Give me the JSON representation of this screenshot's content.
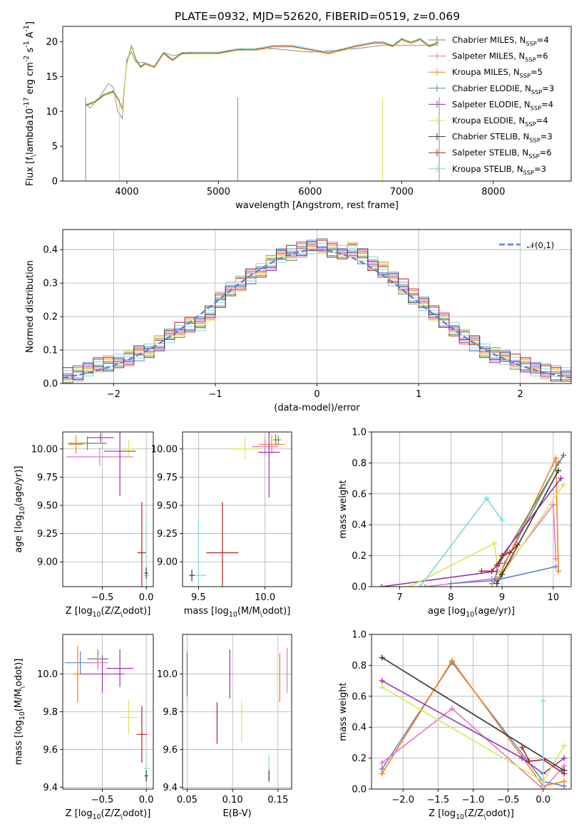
{
  "title": "PLATE=0932, MJD=52620, FIBERID=0519, z=0.069",
  "series_colors": [
    "#808080",
    "#e377c2",
    "#ff7f0e",
    "#5c8a5c",
    "#9b30b0",
    "#d4ea55",
    "#3a3a3a",
    "#b22222",
    "#7fd8d8"
  ],
  "legend": [
    "Chabrier MILES, N$_{SSP}$=4",
    "Salpeter MILES, N$_{SSP}$=6",
    "Kroupa MILES, N$_{SSP}$=5",
    "Chabrier ELODIE, N$_{SSP}$=3",
    "Salpeter ELODIE, N$_{SSP}$=4",
    "Kroupa ELODIE, N$_{SSP}$=4",
    "Chabrier STELIB, N$_{SSP}$=3",
    "Salpeter STELIB, N$_{SSP}$=6",
    "Kroupa STELIB, N$_{SSP}$=3"
  ],
  "chart_data": [
    {
      "id": "spectrum",
      "type": "line",
      "xlabel": "wavelength [Angstrom, rest frame]",
      "ylabel": "Flux [f$_\\lambda$10$^{-17}$ erg cm$^{-2}$ s$^{-1}$ A$^{-1}$]",
      "xlim": [
        3300,
        8850
      ],
      "ylim": [
        0,
        22.2
      ],
      "xticks": [
        4000,
        5000,
        6000,
        7000,
        8000
      ],
      "yticks": [
        0,
        5,
        10,
        15,
        20
      ],
      "observed": {
        "x": [
          3550,
          3600,
          3700,
          3800,
          3850,
          3900,
          3950,
          4000,
          4050,
          4100,
          4200,
          4300,
          4400,
          4500,
          4700,
          5000,
          5300,
          5600,
          6000,
          6500,
          6800,
          7000,
          7200,
          7400
        ],
        "y": [
          11,
          10.5,
          12,
          14,
          13.5,
          10,
          9,
          17.5,
          18.5,
          17,
          17,
          16.5,
          18.5,
          18,
          18.5,
          18.5,
          19,
          19,
          18.5,
          19,
          19.5,
          19.5,
          19.5,
          19.5
        ]
      },
      "model": {
        "x": [
          3550,
          3650,
          3750,
          3850,
          3900,
          3950,
          4000,
          4050,
          4100,
          4150,
          4200,
          4300,
          4400,
          4500,
          4600,
          4800,
          5000,
          5200,
          5400,
          5600,
          5800,
          6000,
          6200,
          6500,
          6700,
          6800,
          6900,
          7000,
          7100,
          7200,
          7300,
          7400
        ],
        "y": [
          11,
          11.5,
          12.5,
          13,
          12,
          10.5,
          17,
          19.5,
          17.5,
          16.5,
          17,
          16.5,
          18.5,
          17.5,
          18.5,
          18.5,
          18.5,
          19,
          19,
          19.5,
          19.5,
          19,
          18.5,
          19.5,
          20,
          20,
          19.5,
          20.5,
          20,
          20.5,
          19.5,
          20
        ]
      }
    },
    {
      "id": "residual-hist",
      "type": "line",
      "xlabel": "(data-model)/error",
      "ylabel": "Normed distribution",
      "xlim": [
        -2.5,
        2.5
      ],
      "ylim": [
        0,
        0.46
      ],
      "xticks": [
        -2,
        -1,
        0,
        1,
        2
      ],
      "yticks": [
        0,
        0.1,
        0.2,
        0.3,
        0.4
      ],
      "reference_label": "$\\mathcal{N}(0,1)$",
      "hist_x": [
        -2.5,
        -2.4,
        -2.3,
        -2.2,
        -2.1,
        -2.0,
        -1.9,
        -1.8,
        -1.7,
        -1.6,
        -1.5,
        -1.4,
        -1.3,
        -1.2,
        -1.1,
        -1.0,
        -0.9,
        -0.8,
        -0.7,
        -0.6,
        -0.5,
        -0.4,
        -0.3,
        -0.2,
        -0.1,
        0.0,
        0.1,
        0.2,
        0.3,
        0.4,
        0.5,
        0.6,
        0.7,
        0.8,
        0.9,
        1.0,
        1.1,
        1.2,
        1.3,
        1.4,
        1.5,
        1.6,
        1.7,
        1.8,
        1.9,
        2.0,
        2.1,
        2.2,
        2.3,
        2.4
      ],
      "hist_y": [
        0.025,
        0.03,
        0.045,
        0.055,
        0.06,
        0.065,
        0.075,
        0.09,
        0.1,
        0.12,
        0.14,
        0.16,
        0.175,
        0.18,
        0.21,
        0.25,
        0.28,
        0.3,
        0.32,
        0.34,
        0.36,
        0.38,
        0.39,
        0.4,
        0.41,
        0.41,
        0.4,
        0.39,
        0.4,
        0.38,
        0.36,
        0.34,
        0.31,
        0.29,
        0.26,
        0.24,
        0.21,
        0.19,
        0.16,
        0.14,
        0.12,
        0.1,
        0.085,
        0.075,
        0.065,
        0.055,
        0.045,
        0.035,
        0.03,
        0.025
      ]
    },
    {
      "id": "age-vs-z",
      "type": "scatter",
      "xlabel": "Z [log$_{10}$($Z/Z_\\odot$)]",
      "ylabel": "age  [log$_{10}$($age/yr$)]",
      "xlim": [
        -0.95,
        0.08
      ],
      "ylim": [
        8.78,
        10.15
      ],
      "xticks": [
        -0.5,
        0.0
      ],
      "yticks": [
        9.0,
        9.25,
        9.5,
        9.75,
        10.0
      ],
      "points": [
        {
          "x": -0.8,
          "xerr": 0.08,
          "y": 10.04,
          "yerr": 0.08,
          "c": 2
        },
        {
          "x": -0.67,
          "xerr": 0.22,
          "y": 10.05,
          "yerr": 0.06,
          "c": 3
        },
        {
          "x": -0.52,
          "xerr": 0.15,
          "y": 10.1,
          "yerr": 0.04,
          "c": 4
        },
        {
          "x": -0.53,
          "xerr": 0.38,
          "y": 9.93,
          "yerr": 0.08,
          "c": 1
        },
        {
          "x": -0.2,
          "xerr": 0.1,
          "y": 10.0,
          "yerr": 0.08,
          "c": 5
        },
        {
          "x": -0.3,
          "xerr": 0.18,
          "y": 9.98,
          "yerr": 0.4,
          "c": 4
        },
        {
          "x": -0.05,
          "xerr": 0.05,
          "y": 9.08,
          "yerr": 0.45,
          "c": 7
        },
        {
          "x": 0.0,
          "xerr": 0.03,
          "y": 8.88,
          "yerr": 0.5,
          "c": 8
        },
        {
          "x": 0.0,
          "xerr": 0.02,
          "y": 8.9,
          "yerr": 0.05,
          "c": 6
        }
      ]
    },
    {
      "id": "age-vs-mass",
      "type": "scatter",
      "xlabel": "mass [log$_{10}$($M/M_\\odot$)]",
      "ylabel": "",
      "xlim": [
        9.38,
        10.2
      ],
      "ylim": [
        8.78,
        10.15
      ],
      "xticks": [
        9.5,
        10.0
      ],
      "yticks": [
        9.0,
        9.25,
        9.5,
        9.75,
        10.0
      ],
      "points": [
        {
          "x": 10.05,
          "xerr": 0.1,
          "y": 10.04,
          "yerr": 0.08,
          "c": 2
        },
        {
          "x": 10.08,
          "xerr": 0.02,
          "y": 10.08,
          "yerr": 0.05,
          "c": 3
        },
        {
          "x": 10.0,
          "xerr": 0.1,
          "y": 10.02,
          "yerr": 0.08,
          "c": 1
        },
        {
          "x": 9.85,
          "xerr": 0.12,
          "y": 10.0,
          "yerr": 0.1,
          "c": 5
        },
        {
          "x": 10.03,
          "xerr": 0.08,
          "y": 9.97,
          "yerr": 0.4,
          "c": 4
        },
        {
          "x": 9.68,
          "xerr": 0.12,
          "y": 9.08,
          "yerr": 0.45,
          "c": 7
        },
        {
          "x": 9.5,
          "xerr": 0.06,
          "y": 8.88,
          "yerr": 0.5,
          "c": 8
        },
        {
          "x": 9.45,
          "xerr": 0.02,
          "y": 8.88,
          "yerr": 0.05,
          "c": 6
        },
        {
          "x": 10.1,
          "xerr": 0.02,
          "y": 10.08,
          "yerr": 0.04,
          "c": 3
        }
      ]
    },
    {
      "id": "weight-vs-age",
      "type": "line",
      "xlabel": "age  [log$_{10}$($age/yr$)]",
      "ylabel": "mass weight",
      "xlim": [
        6.45,
        10.35
      ],
      "ylim": [
        0,
        1.0
      ],
      "xticks": [
        7,
        8,
        9,
        10
      ],
      "yticks": [
        0.0,
        0.2,
        0.4,
        0.6,
        0.8,
        1.0
      ],
      "series": [
        {
          "c": 0,
          "x": [
            8.9,
            8.95,
            9.05,
            10.1
          ],
          "y": [
            0.04,
            0.06,
            0.15,
            0.8
          ]
        },
        {
          "c": 1,
          "x": [
            7.5,
            8.8,
            8.9,
            10.0,
            10.05
          ],
          "y": [
            0.0,
            0.05,
            0.05,
            0.53,
            0.18
          ]
        },
        {
          "c": 2,
          "x": [
            8.8,
            8.9,
            10.05,
            10.1
          ],
          "y": [
            0.02,
            0.04,
            0.83,
            0.1
          ]
        },
        {
          "c": 3,
          "x": [
            8.85,
            8.95,
            10.2
          ],
          "y": [
            0.04,
            0.15,
            0.85
          ]
        },
        {
          "c": 4,
          "x": [
            6.65,
            8.9,
            9.0,
            10.15
          ],
          "y": [
            0.0,
            0.1,
            0.2,
            0.7
          ]
        },
        {
          "c": 5,
          "x": [
            7.2,
            8.85,
            8.95,
            10.2
          ],
          "y": [
            0.0,
            0.28,
            0.05,
            0.66
          ]
        },
        {
          "c": 6,
          "x": [
            8.9,
            9.0,
            10.1
          ],
          "y": [
            0.02,
            0.08,
            0.75
          ]
        },
        {
          "c": 7,
          "x": [
            8.6,
            8.8,
            8.9,
            9.0,
            9.15,
            9.3
          ],
          "y": [
            0.1,
            0.1,
            0.14,
            0.2,
            0.22,
            0.27
          ]
        },
        {
          "c": 8,
          "x": [
            7.4,
            8.7,
            9.0
          ],
          "y": [
            0.0,
            0.57,
            0.43
          ]
        },
        {
          "c": 0,
          "x": [
            8.0,
            8.85,
            10.05
          ],
          "y": [
            0.02,
            0.04,
            0.13
          ],
          "alt_color": "#5b84d8"
        }
      ]
    },
    {
      "id": "mass-vs-z",
      "type": "scatter",
      "xlabel": "Z [log$_{10}$($Z/Z_\\odot$)]",
      "ylabel": "mass [log$_{10}$($M/M_\\odot$)]",
      "xlim": [
        -0.95,
        0.08
      ],
      "ylim": [
        9.39,
        10.21
      ],
      "xticks": [
        -0.5,
        0.0
      ],
      "yticks": [
        9.4,
        9.6,
        9.8,
        10.0
      ],
      "points": [
        {
          "x": -0.75,
          "xerr": 0.18,
          "y": 10.06,
          "yerr": 0.06,
          "c": 0,
          "alt_color": "#5b84d8"
        },
        {
          "x": -0.78,
          "xerr": 0.05,
          "y": 10.0,
          "yerr": 0.15,
          "c": 2
        },
        {
          "x": -0.5,
          "xerr": 0.25,
          "y": 10.0,
          "yerr": 0.1,
          "c": 4
        },
        {
          "x": -0.55,
          "xerr": 0.12,
          "y": 10.08,
          "yerr": 0.05,
          "c": 3
        },
        {
          "x": -0.55,
          "xerr": 0.12,
          "y": 10.06,
          "yerr": 0.04,
          "c": 1
        },
        {
          "x": -0.2,
          "xerr": 0.1,
          "y": 9.77,
          "yerr": 0.09,
          "c": 5
        },
        {
          "x": -0.3,
          "xerr": 0.15,
          "y": 10.03,
          "yerr": 0.1,
          "c": 4
        },
        {
          "x": -0.05,
          "xerr": 0.06,
          "y": 9.68,
          "yerr": 0.15,
          "c": 7
        },
        {
          "x": 0.0,
          "xerr": 0.03,
          "y": 9.5,
          "yerr": 0.07,
          "c": 8
        },
        {
          "x": 0.0,
          "xerr": 0.02,
          "y": 9.46,
          "yerr": 0.03,
          "c": 6
        }
      ]
    },
    {
      "id": "mass-vs-ebv",
      "type": "scatter",
      "xlabel": "E(B-V)",
      "ylabel": "",
      "xlim": [
        0.045,
        0.165
      ],
      "ylim": [
        9.39,
        10.21
      ],
      "xticks": [
        0.05,
        0.1,
        0.15
      ],
      "yticks": [
        9.4,
        9.6,
        9.8,
        10.0
      ],
      "points": [
        {
          "x": 0.05,
          "y": 10.0,
          "yerr": 0.12,
          "c": 3
        },
        {
          "x": 0.083,
          "y": 9.74,
          "yerr": 0.11,
          "c": 7
        },
        {
          "x": 0.097,
          "y": 10.0,
          "yerr": 0.13,
          "c": 4
        },
        {
          "x": 0.11,
          "y": 9.75,
          "yerr": 0.11,
          "c": 5
        },
        {
          "x": 0.14,
          "y": 9.5,
          "yerr": 0.07,
          "c": 8
        },
        {
          "x": 0.14,
          "y": 9.46,
          "yerr": 0.03,
          "c": 6
        },
        {
          "x": 0.152,
          "y": 9.98,
          "yerr": 0.13,
          "c": 2
        },
        {
          "x": 0.16,
          "y": 10.02,
          "yerr": 0.12,
          "c": 1
        }
      ]
    },
    {
      "id": "weight-vs-z",
      "type": "line",
      "xlabel": "Z [log$_{10}$($Z/Z_\\odot$)]",
      "ylabel": "mass weight",
      "xlim": [
        -2.45,
        0.4
      ],
      "ylim": [
        0,
        1.0
      ],
      "xticks": [
        -2.0,
        -1.5,
        -1.0,
        -0.5,
        0.0
      ],
      "yticks": [
        0.0,
        0.2,
        0.4,
        0.6,
        0.8,
        1.0
      ],
      "series": [
        {
          "c": 0,
          "x": [
            -2.3,
            -1.3,
            0.0,
            0.3
          ],
          "y": [
            0.13,
            0.82,
            0.05,
            0.02
          ],
          "alt_color": "#5b84d8"
        },
        {
          "c": 2,
          "x": [
            -2.3,
            -1.3,
            0.0,
            0.3
          ],
          "y": [
            0.1,
            0.83,
            0.02,
            0.05
          ]
        },
        {
          "c": 1,
          "x": [
            -2.3,
            -1.3,
            0.0,
            0.3
          ],
          "y": [
            0.17,
            0.52,
            0.0,
            0.15
          ]
        },
        {
          "c": 3,
          "x": [
            -2.3,
            0.3
          ],
          "y": [
            0.85,
            0.12
          ]
        },
        {
          "c": 4,
          "x": [
            -2.3,
            -0.3,
            0.0,
            0.3
          ],
          "y": [
            0.7,
            0.2,
            0.1,
            0.2
          ]
        },
        {
          "c": 5,
          "x": [
            -2.3,
            0.0,
            0.3
          ],
          "y": [
            0.66,
            0.05,
            0.28
          ]
        },
        {
          "c": 6,
          "x": [
            -2.3,
            0.3
          ],
          "y": [
            0.85,
            0.12
          ]
        },
        {
          "c": 7,
          "x": [
            -0.3,
            -0.2,
            0.0,
            0.3
          ],
          "y": [
            0.27,
            0.18,
            0.19,
            0.1
          ]
        },
        {
          "c": 8,
          "x": [
            0.0,
            0.0
          ],
          "y": [
            0.0,
            0.57
          ]
        }
      ]
    }
  ]
}
